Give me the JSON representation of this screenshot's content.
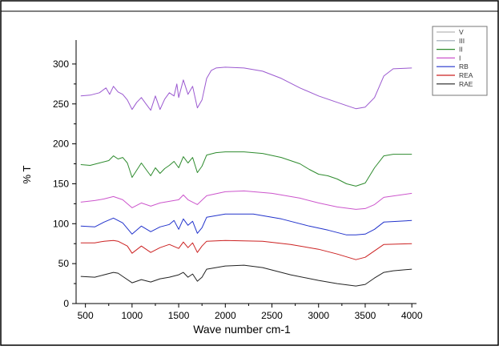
{
  "chart_data": {
    "type": "line",
    "xlabel": "Wave number cm-1",
    "ylabel": "% T",
    "xlim": [
      400,
      4050
    ],
    "ylim": [
      0,
      330
    ],
    "x_ticks": [
      500,
      1000,
      1500,
      2000,
      2500,
      3000,
      3500,
      4000
    ],
    "y_ticks": [
      0,
      50,
      100,
      150,
      200,
      250,
      300
    ],
    "legend_position": "top-right",
    "grid": false,
    "series": [
      {
        "name": "V",
        "color": "#b8b8b8",
        "values": []
      },
      {
        "name": "III",
        "color": "#9aa6b2",
        "values": []
      },
      {
        "name": "II",
        "color": "#2e8b2e",
        "values": [
          [
            450,
            174
          ],
          [
            550,
            173
          ],
          [
            650,
            176
          ],
          [
            750,
            179
          ],
          [
            800,
            185
          ],
          [
            850,
            181
          ],
          [
            900,
            183
          ],
          [
            950,
            176
          ],
          [
            1000,
            158
          ],
          [
            1050,
            167
          ],
          [
            1100,
            176
          ],
          [
            1150,
            168
          ],
          [
            1200,
            160
          ],
          [
            1250,
            170
          ],
          [
            1300,
            163
          ],
          [
            1350,
            169
          ],
          [
            1400,
            173
          ],
          [
            1450,
            178
          ],
          [
            1500,
            170
          ],
          [
            1550,
            184
          ],
          [
            1600,
            176
          ],
          [
            1650,
            183
          ],
          [
            1700,
            164
          ],
          [
            1750,
            172
          ],
          [
            1800,
            186
          ],
          [
            1900,
            189
          ],
          [
            2000,
            190
          ],
          [
            2200,
            190
          ],
          [
            2400,
            188
          ],
          [
            2600,
            183
          ],
          [
            2800,
            175
          ],
          [
            2900,
            168
          ],
          [
            3000,
            162
          ],
          [
            3100,
            160
          ],
          [
            3200,
            156
          ],
          [
            3300,
            150
          ],
          [
            3400,
            147
          ],
          [
            3500,
            151
          ],
          [
            3600,
            170
          ],
          [
            3700,
            185
          ],
          [
            3800,
            187
          ],
          [
            4000,
            187
          ]
        ]
      },
      {
        "name": "I",
        "color": "#cc55cc",
        "values": [
          [
            450,
            127
          ],
          [
            600,
            129
          ],
          [
            700,
            131
          ],
          [
            800,
            134
          ],
          [
            900,
            130
          ],
          [
            1000,
            120
          ],
          [
            1100,
            126
          ],
          [
            1200,
            122
          ],
          [
            1300,
            126
          ],
          [
            1400,
            128
          ],
          [
            1500,
            130
          ],
          [
            1550,
            136
          ],
          [
            1600,
            130
          ],
          [
            1700,
            124
          ],
          [
            1800,
            135
          ],
          [
            2000,
            140
          ],
          [
            2200,
            141
          ],
          [
            2500,
            138
          ],
          [
            2800,
            132
          ],
          [
            3000,
            126
          ],
          [
            3200,
            121
          ],
          [
            3400,
            118
          ],
          [
            3500,
            119
          ],
          [
            3600,
            124
          ],
          [
            3700,
            133
          ],
          [
            4000,
            138
          ]
        ]
      },
      {
        "name": "RB",
        "color": "#2233cc",
        "values": [
          [
            450,
            97
          ],
          [
            600,
            96
          ],
          [
            700,
            102
          ],
          [
            800,
            107
          ],
          [
            900,
            101
          ],
          [
            1000,
            87
          ],
          [
            1100,
            97
          ],
          [
            1200,
            90
          ],
          [
            1300,
            96
          ],
          [
            1400,
            99
          ],
          [
            1450,
            104
          ],
          [
            1500,
            93
          ],
          [
            1550,
            106
          ],
          [
            1600,
            98
          ],
          [
            1650,
            103
          ],
          [
            1700,
            88
          ],
          [
            1750,
            95
          ],
          [
            1800,
            108
          ],
          [
            2000,
            112
          ],
          [
            2300,
            112
          ],
          [
            2600,
            106
          ],
          [
            2900,
            97
          ],
          [
            3100,
            92
          ],
          [
            3300,
            86
          ],
          [
            3400,
            86
          ],
          [
            3500,
            87
          ],
          [
            3600,
            93
          ],
          [
            3700,
            102
          ],
          [
            4000,
            104
          ]
        ]
      },
      {
        "name": "REA",
        "color": "#cc2222",
        "values": [
          [
            450,
            76
          ],
          [
            600,
            76
          ],
          [
            700,
            78
          ],
          [
            800,
            79
          ],
          [
            850,
            78
          ],
          [
            950,
            72
          ],
          [
            1000,
            63
          ],
          [
            1100,
            72
          ],
          [
            1200,
            64
          ],
          [
            1300,
            70
          ],
          [
            1400,
            74
          ],
          [
            1500,
            69
          ],
          [
            1550,
            77
          ],
          [
            1600,
            70
          ],
          [
            1650,
            76
          ],
          [
            1700,
            64
          ],
          [
            1750,
            72
          ],
          [
            1800,
            78
          ],
          [
            2000,
            79
          ],
          [
            2400,
            78
          ],
          [
            2700,
            74
          ],
          [
            3000,
            68
          ],
          [
            3200,
            62
          ],
          [
            3400,
            55
          ],
          [
            3500,
            58
          ],
          [
            3600,
            66
          ],
          [
            3700,
            74
          ],
          [
            4000,
            75
          ]
        ]
      },
      {
        "name": "RAE",
        "color": "#222222",
        "values": [
          [
            450,
            34
          ],
          [
            600,
            33
          ],
          [
            700,
            36
          ],
          [
            800,
            39
          ],
          [
            850,
            38
          ],
          [
            900,
            34
          ],
          [
            1000,
            26
          ],
          [
            1100,
            30
          ],
          [
            1200,
            27
          ],
          [
            1300,
            31
          ],
          [
            1400,
            33
          ],
          [
            1500,
            36
          ],
          [
            1550,
            39
          ],
          [
            1600,
            33
          ],
          [
            1650,
            37
          ],
          [
            1700,
            28
          ],
          [
            1750,
            33
          ],
          [
            1800,
            43
          ],
          [
            2000,
            47
          ],
          [
            2200,
            48
          ],
          [
            2400,
            45
          ],
          [
            2700,
            36
          ],
          [
            3000,
            29
          ],
          [
            3200,
            25
          ],
          [
            3400,
            22
          ],
          [
            3500,
            24
          ],
          [
            3600,
            32
          ],
          [
            3700,
            39
          ],
          [
            3800,
            41
          ],
          [
            4000,
            43
          ]
        ]
      },
      {
        "name": "",
        "color": "#9b59d0",
        "values": [
          [
            450,
            260
          ],
          [
            550,
            261
          ],
          [
            650,
            264
          ],
          [
            720,
            270
          ],
          [
            760,
            262
          ],
          [
            800,
            272
          ],
          [
            850,
            265
          ],
          [
            900,
            262
          ],
          [
            950,
            255
          ],
          [
            1000,
            243
          ],
          [
            1050,
            252
          ],
          [
            1100,
            258
          ],
          [
            1150,
            250
          ],
          [
            1200,
            242
          ],
          [
            1250,
            260
          ],
          [
            1300,
            243
          ],
          [
            1350,
            256
          ],
          [
            1400,
            264
          ],
          [
            1450,
            260
          ],
          [
            1480,
            275
          ],
          [
            1500,
            258
          ],
          [
            1550,
            280
          ],
          [
            1600,
            262
          ],
          [
            1650,
            272
          ],
          [
            1700,
            245
          ],
          [
            1750,
            255
          ],
          [
            1800,
            282
          ],
          [
            1850,
            292
          ],
          [
            1900,
            295
          ],
          [
            2000,
            296
          ],
          [
            2200,
            295
          ],
          [
            2400,
            291
          ],
          [
            2600,
            282
          ],
          [
            2800,
            270
          ],
          [
            3000,
            260
          ],
          [
            3200,
            252
          ],
          [
            3300,
            248
          ],
          [
            3400,
            244
          ],
          [
            3500,
            246
          ],
          [
            3600,
            258
          ],
          [
            3700,
            285
          ],
          [
            3800,
            294
          ],
          [
            4000,
            295
          ]
        ]
      }
    ]
  }
}
